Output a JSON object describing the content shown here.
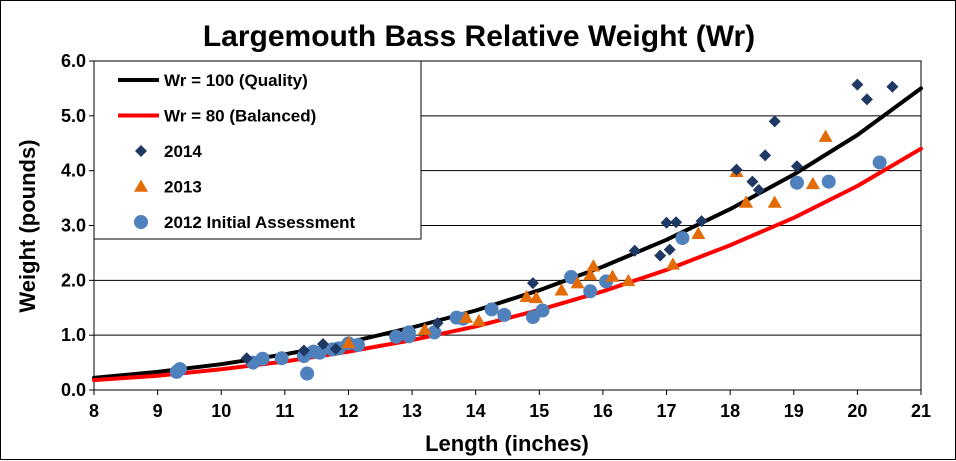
{
  "chart_data": {
    "type": "scatter",
    "title": "Largemouth Bass Relative Weight (Wr)",
    "xlabel": "Length (inches)",
    "ylabel": "Weight (pounds)",
    "xlim": [
      8,
      21
    ],
    "ylim": [
      0,
      6
    ],
    "xticks": [
      "8",
      "9",
      "10",
      "11",
      "12",
      "13",
      "14",
      "15",
      "16",
      "17",
      "18",
      "19",
      "20",
      "21"
    ],
    "yticks": [
      "0.0",
      "1.0",
      "2.0",
      "3.0",
      "4.0",
      "5.0",
      "6.0"
    ],
    "grid": "horizontal",
    "legend_position": "top-left",
    "lines": [
      {
        "name": "Wr = 100 (Quality)",
        "color": "#000000",
        "x": [
          8,
          9,
          10,
          11,
          12,
          13,
          14,
          15,
          16,
          17,
          18,
          19,
          20,
          21
        ],
        "y": [
          0.22,
          0.33,
          0.47,
          0.65,
          0.87,
          1.14,
          1.45,
          1.82,
          2.25,
          2.74,
          3.3,
          3.93,
          4.65,
          5.5
        ]
      },
      {
        "name": "Wr = 80 (Balanced)",
        "color": "#ff0000",
        "x": [
          8,
          9,
          10,
          11,
          12,
          13,
          14,
          15,
          16,
          17,
          18,
          19,
          20,
          21
        ],
        "y": [
          0.18,
          0.26,
          0.38,
          0.52,
          0.7,
          0.91,
          1.16,
          1.46,
          1.8,
          2.19,
          2.64,
          3.14,
          3.72,
          4.4
        ]
      }
    ],
    "series": [
      {
        "name": "2014",
        "marker": "diamond",
        "color": "#1f3864",
        "x": [
          10.4,
          11.3,
          11.6,
          11.8,
          13.4,
          14.9,
          16.5,
          16.9,
          17.0,
          17.05,
          17.15,
          17.55,
          18.1,
          18.35,
          18.45,
          18.55,
          18.7,
          19.05,
          20.0,
          20.15,
          20.55
        ],
        "y": [
          0.58,
          0.72,
          0.84,
          0.75,
          1.22,
          1.95,
          2.54,
          2.45,
          3.05,
          2.56,
          3.06,
          3.08,
          4.02,
          3.8,
          3.65,
          4.28,
          4.9,
          4.08,
          5.57,
          5.3,
          5.53
        ]
      },
      {
        "name": "2013",
        "marker": "triangle",
        "color": "#e36c09",
        "x": [
          12.0,
          13.2,
          13.85,
          14.05,
          14.8,
          14.95,
          15.35,
          15.6,
          15.8,
          15.85,
          16.15,
          16.4,
          17.1,
          17.5,
          18.1,
          18.25,
          18.7,
          19.3,
          19.5
        ],
        "y": [
          0.86,
          1.1,
          1.32,
          1.26,
          1.7,
          1.68,
          1.82,
          1.95,
          2.1,
          2.26,
          2.07,
          1.99,
          2.29,
          2.85,
          3.98,
          3.42,
          3.42,
          3.76,
          4.62
        ]
      },
      {
        "name": "2012 Initial Assessment",
        "marker": "circle",
        "color": "#4f81bd",
        "x": [
          9.3,
          9.35,
          10.5,
          10.65,
          10.95,
          11.3,
          11.35,
          11.45,
          11.55,
          11.75,
          11.85,
          12.0,
          12.15,
          12.75,
          12.95,
          12.95,
          13.35,
          13.7,
          13.8,
          14.25,
          14.45,
          14.9,
          15.05,
          15.5,
          15.8,
          16.05,
          17.25,
          19.05,
          19.55,
          20.35
        ],
        "y": [
          0.33,
          0.38,
          0.5,
          0.57,
          0.58,
          0.62,
          0.3,
          0.7,
          0.68,
          0.74,
          0.76,
          0.85,
          0.82,
          0.97,
          0.98,
          1.05,
          1.05,
          1.32,
          1.3,
          1.47,
          1.37,
          1.33,
          1.45,
          2.06,
          1.8,
          1.98,
          2.77,
          3.78,
          3.8,
          4.15
        ]
      }
    ]
  }
}
